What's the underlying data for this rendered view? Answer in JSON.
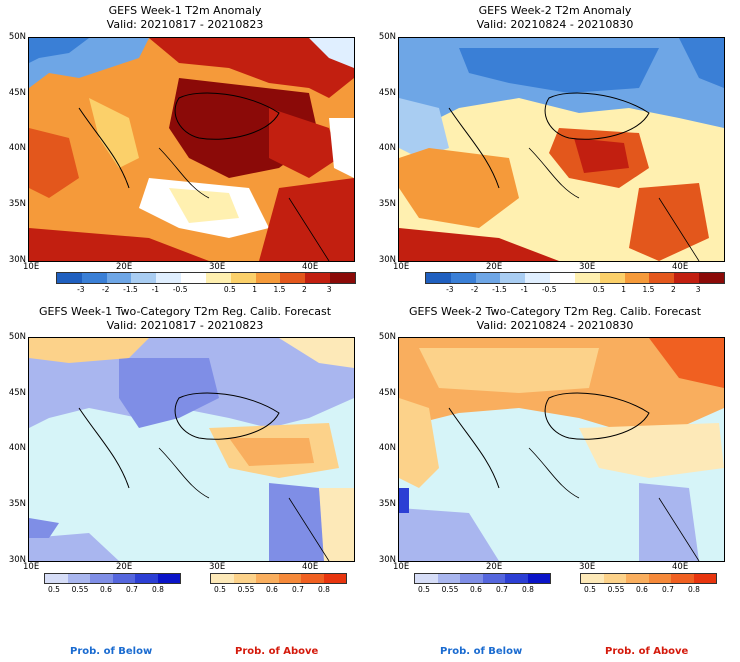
{
  "panels": [
    {
      "title": "GEFS Week-1 T2m Anomaly",
      "valid": "Valid: 20210817 - 20210823"
    },
    {
      "title": "GEFS Week-2 T2m Anomaly",
      "valid": "Valid: 20210824 - 20210830"
    },
    {
      "title": "GEFS Week-1 Two-Category T2m Reg. Calib. Forecast",
      "valid": "Valid: 20210817 - 20210823"
    },
    {
      "title": "GEFS Week-2 Two-Category T2m Reg. Calib. Forecast",
      "valid": "Valid: 20210824 - 20210830"
    }
  ],
  "lat_labels": [
    "50N",
    "45N",
    "40N",
    "35N",
    "30N"
  ],
  "lon_labels": [
    "10E",
    "20E",
    "30E",
    "40E"
  ],
  "anomaly_ticks": [
    "-3",
    "-2",
    "-1.5",
    "-1",
    "-0.5",
    "0.5",
    "1",
    "1.5",
    "2",
    "3"
  ],
  "prob_ticks": [
    "0.5",
    "0.55",
    "0.6",
    "0.7",
    "0.8"
  ],
  "prob_below_label": "Prob. of Below",
  "prob_above_label": "Prob. of Above",
  "colors": {
    "anomaly_scale": [
      "#1f5fbf",
      "#3a7fd6",
      "#6ea6e6",
      "#a9cdf2",
      "#e0efff",
      "#ffffff",
      "#fff0b0",
      "#fbd06a",
      "#f59a3a",
      "#e3571c",
      "#c21f10",
      "#8b0a08"
    ],
    "below_scale": [
      "#d6ddf7",
      "#a9b6ef",
      "#7f8ee6",
      "#5566dd",
      "#2c3fd4",
      "#0a14c8"
    ],
    "above_scale": [
      "#fde9b8",
      "#fcd28a",
      "#f9ae5e",
      "#f5893a",
      "#f06021",
      "#e8350e"
    ],
    "ocean_prob": "#d6f4f8"
  }
}
